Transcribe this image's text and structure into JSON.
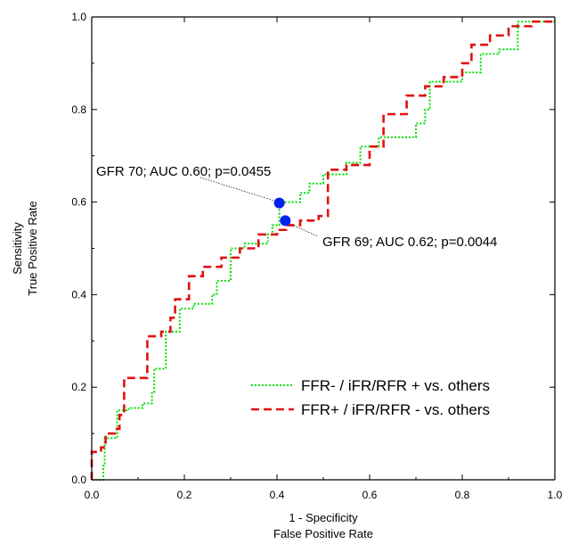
{
  "chart_data": {
    "type": "line",
    "title": "",
    "xlabel": [
      "1 - Specificity",
      "False Positive Rate"
    ],
    "ylabel": [
      "Sensitivity",
      "True Positive Rate"
    ],
    "xlim": [
      0,
      1
    ],
    "ylim": [
      0,
      1
    ],
    "xticks": [
      "0.0",
      "0.2",
      "0.4",
      "0.6",
      "0.8",
      "1.0"
    ],
    "yticks": [
      "0.0",
      "0.2",
      "0.4",
      "0.6",
      "0.8",
      "1.0"
    ],
    "grid": false,
    "legend_position": "bottom-right",
    "series": [
      {
        "name": "FFR- / iFR/RFR + vs. others",
        "color": "#00dd00",
        "style": "dotted",
        "points": [
          [
            0.0,
            0.0
          ],
          [
            0.02,
            0.0
          ],
          [
            0.025,
            0.03
          ],
          [
            0.028,
            0.09
          ],
          [
            0.05,
            0.09
          ],
          [
            0.055,
            0.15
          ],
          [
            0.08,
            0.155
          ],
          [
            0.11,
            0.165
          ],
          [
            0.13,
            0.19
          ],
          [
            0.135,
            0.24
          ],
          [
            0.16,
            0.25
          ],
          [
            0.16,
            0.32
          ],
          [
            0.19,
            0.33
          ],
          [
            0.19,
            0.37
          ],
          [
            0.22,
            0.38
          ],
          [
            0.26,
            0.4
          ],
          [
            0.27,
            0.43
          ],
          [
            0.3,
            0.46
          ],
          [
            0.3,
            0.5
          ],
          [
            0.33,
            0.51
          ],
          [
            0.38,
            0.53
          ],
          [
            0.39,
            0.55
          ],
          [
            0.405,
            0.565
          ],
          [
            0.405,
            0.6
          ],
          [
            0.45,
            0.62
          ],
          [
            0.47,
            0.64
          ],
          [
            0.5,
            0.66
          ],
          [
            0.55,
            0.685
          ],
          [
            0.58,
            0.72
          ],
          [
            0.62,
            0.74
          ],
          [
            0.7,
            0.77
          ],
          [
            0.72,
            0.8
          ],
          [
            0.73,
            0.86
          ],
          [
            0.78,
            0.86
          ],
          [
            0.8,
            0.88
          ],
          [
            0.84,
            0.92
          ],
          [
            0.88,
            0.93
          ],
          [
            0.92,
            0.94
          ],
          [
            0.92,
            0.99
          ],
          [
            1.0,
            0.99
          ]
        ]
      },
      {
        "name": "FFR+ / iFR/RFR - vs. others",
        "color": "#e11010",
        "style": "dashed",
        "points": [
          [
            0.0,
            0.0
          ],
          [
            0.0,
            0.06
          ],
          [
            0.02,
            0.07
          ],
          [
            0.03,
            0.1
          ],
          [
            0.05,
            0.11
          ],
          [
            0.06,
            0.14
          ],
          [
            0.07,
            0.16
          ],
          [
            0.07,
            0.22
          ],
          [
            0.12,
            0.24
          ],
          [
            0.12,
            0.31
          ],
          [
            0.15,
            0.32
          ],
          [
            0.17,
            0.35
          ],
          [
            0.18,
            0.39
          ],
          [
            0.21,
            0.44
          ],
          [
            0.24,
            0.46
          ],
          [
            0.28,
            0.48
          ],
          [
            0.32,
            0.5
          ],
          [
            0.36,
            0.53
          ],
          [
            0.4,
            0.54
          ],
          [
            0.42,
            0.55
          ],
          [
            0.45,
            0.56
          ],
          [
            0.49,
            0.57
          ],
          [
            0.51,
            0.67
          ],
          [
            0.55,
            0.68
          ],
          [
            0.6,
            0.72
          ],
          [
            0.63,
            0.79
          ],
          [
            0.68,
            0.83
          ],
          [
            0.72,
            0.85
          ],
          [
            0.76,
            0.87
          ],
          [
            0.8,
            0.9
          ],
          [
            0.82,
            0.94
          ],
          [
            0.86,
            0.96
          ],
          [
            0.9,
            0.98
          ],
          [
            0.95,
            0.99
          ],
          [
            1.0,
            0.99
          ]
        ]
      }
    ],
    "markers": [
      {
        "x": 0.405,
        "y": 0.598,
        "color": "#0022ee"
      },
      {
        "x": 0.418,
        "y": 0.56,
        "color": "#0022ee"
      }
    ],
    "annotations": [
      {
        "text": "GFR 70; AUC 0.60; p=0.0455",
        "x": 0.405,
        "y": 0.598
      },
      {
        "text": "GFR 69; AUC 0.62; p=0.0044",
        "x": 0.418,
        "y": 0.56
      }
    ]
  }
}
